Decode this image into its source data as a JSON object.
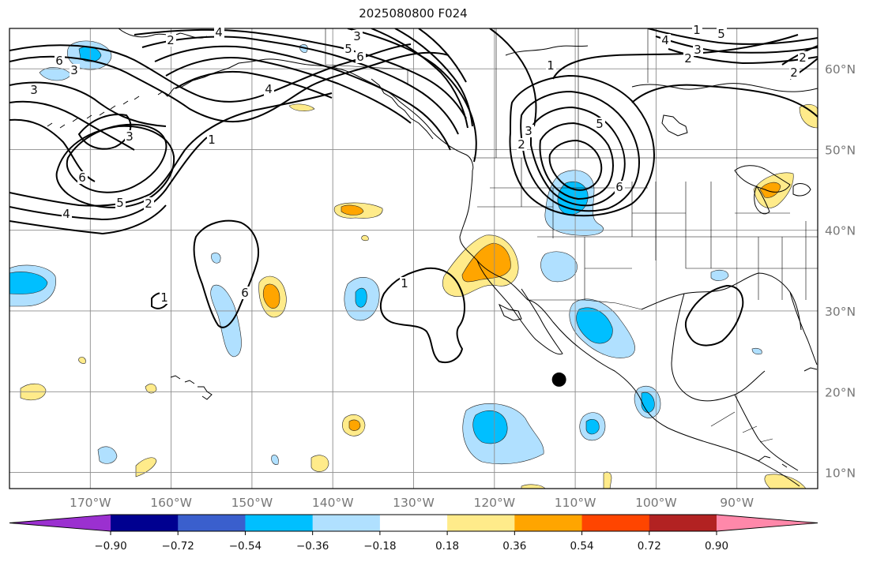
{
  "title": "2025080800 F024",
  "map": {
    "lon_range": [
      -180,
      -80
    ],
    "lat_range": [
      8,
      65
    ],
    "lat_ticks": [
      {
        "value": 60,
        "label": "60°N"
      },
      {
        "value": 50,
        "label": "50°N"
      },
      {
        "value": 40,
        "label": "40°N"
      },
      {
        "value": 30,
        "label": "30°N"
      },
      {
        "value": 20,
        "label": "20°N"
      },
      {
        "value": 10,
        "label": "10°N"
      }
    ],
    "lon_ticks": [
      {
        "value": -170,
        "label": "170°W"
      },
      {
        "value": -160,
        "label": "160°W"
      },
      {
        "value": -150,
        "label": "150°W"
      },
      {
        "value": -140,
        "label": "140°W"
      },
      {
        "value": -130,
        "label": "130°W"
      },
      {
        "value": -120,
        "label": "120°W"
      },
      {
        "value": -110,
        "label": "110°W"
      },
      {
        "value": -100,
        "label": "100°W"
      },
      {
        "value": -90,
        "label": "90°W"
      }
    ],
    "marker": {
      "lon": -112,
      "lat": 21.5
    }
  },
  "colorbar": {
    "colors": [
      "#9b30d0",
      "#000090",
      "#3a5fcd",
      "#00bfff",
      "#b0e0ff",
      "#ffffff",
      "#ffeb8a",
      "#ffa500",
      "#ff4500",
      "#b22222",
      "#ff88aa"
    ],
    "tick_labels": [
      "−0.90",
      "−0.72",
      "−0.54",
      "−0.36",
      "−0.18",
      "0.18",
      "0.36",
      "0.54",
      "0.72",
      "0.90"
    ]
  },
  "contour_labels": [
    "3",
    "6",
    "3",
    "4",
    "2",
    "1",
    "3",
    "5",
    "6",
    "6",
    "5",
    "4",
    "3",
    "2",
    "4",
    "1",
    "5",
    "2",
    "3",
    "6",
    "4",
    "2",
    "3",
    "5",
    "2",
    "1",
    "6",
    "1",
    "1",
    "2"
  ]
}
